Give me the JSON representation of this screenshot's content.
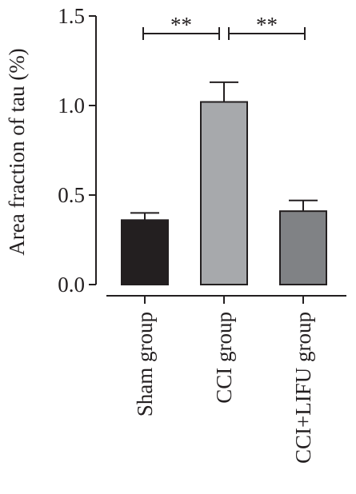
{
  "chart_data": {
    "type": "bar",
    "title": "",
    "xlabel": "",
    "ylabel": "Area fraction of tau (%)",
    "ylim": [
      0,
      1.5
    ],
    "yticks": [
      {
        "value": 0.0,
        "label": "0.0"
      },
      {
        "value": 0.5,
        "label": "0.5"
      },
      {
        "value": 1.0,
        "label": "1.0"
      },
      {
        "value": 1.5,
        "label": "1.5"
      }
    ],
    "categories": [
      "Sham group",
      "CCI group",
      "CCI+LIFU group"
    ],
    "values": [
      0.36,
      1.02,
      0.41
    ],
    "errors": [
      0.04,
      0.11,
      0.06
    ],
    "bar_colors": [
      "#231f20",
      "#a7a9ac",
      "#808285"
    ],
    "significance": [
      {
        "from": 0,
        "to": 1,
        "label": "**"
      },
      {
        "from": 1,
        "to": 2,
        "label": "**"
      }
    ],
    "grid": false,
    "legend": "none"
  }
}
